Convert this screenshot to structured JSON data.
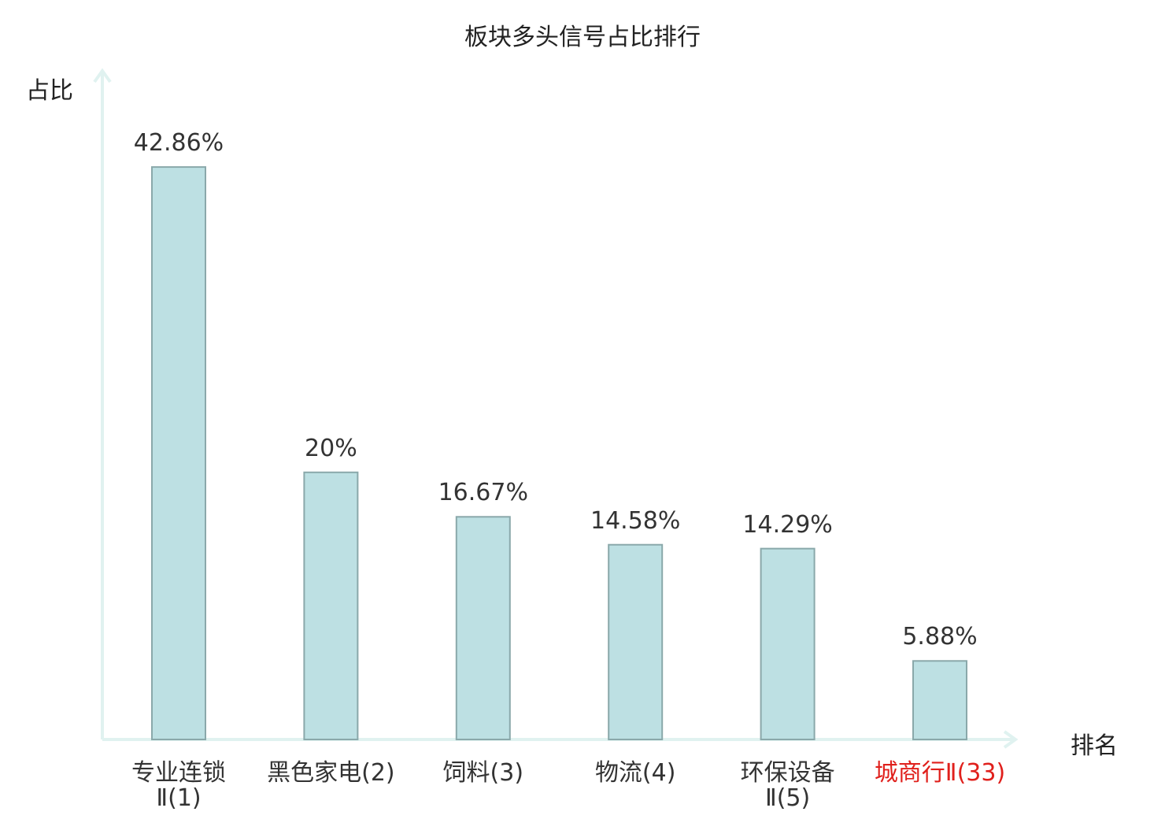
{
  "chart_data": {
    "type": "bar",
    "title": "板块多头信号占比排行",
    "ylabel": "占比",
    "xlabel": "排名",
    "categories": [
      [
        "专业连锁",
        "Ⅱ(1)"
      ],
      [
        "黑色家电(2)"
      ],
      [
        "饲料(3)"
      ],
      [
        "物流(4)"
      ],
      [
        "环保设备",
        "Ⅱ(5)"
      ],
      [
        "城商行Ⅱ(33)"
      ]
    ],
    "values": [
      42.86,
      20,
      16.67,
      14.58,
      14.29,
      5.88
    ],
    "value_labels": [
      "42.86%",
      "20%",
      "16.67%",
      "14.58%",
      "14.29%",
      "5.88%"
    ],
    "highlight_index": 5,
    "ylim": [
      0,
      50
    ],
    "grid": false,
    "colors": {
      "bar_fill": "#bde0e3",
      "bar_stroke": "#8aa8aa",
      "axis": "#e0f2f0",
      "highlight_text": "#e0201c"
    }
  }
}
